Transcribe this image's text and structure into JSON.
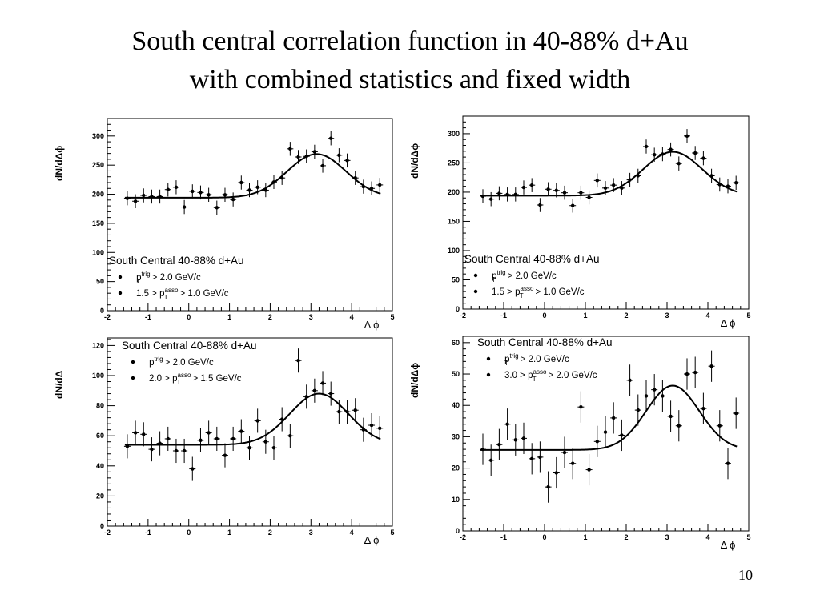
{
  "slide": {
    "title_line1": "South central correlation function in 40-88% d+Au",
    "title_line2": "with combined statistics and fixed width",
    "page_number": "10"
  },
  "chart_data": [
    {
      "type": "scatter",
      "title": "",
      "xlabel": "Δ ϕ",
      "ylabel": "dN/dΔϕ",
      "xlim": [
        -2,
        5
      ],
      "ylim": [
        0,
        330
      ],
      "xticks": [
        -2,
        -1,
        0,
        1,
        2,
        3,
        4,
        5
      ],
      "yticks": [
        0,
        50,
        100,
        150,
        200,
        250,
        300
      ],
      "legend": {
        "title": "South Central 40-88% d+Au",
        "entries": [
          {
            "pre": "p",
            "sup": "trig",
            "sub": "T",
            "post": " > 2.0 GeV/c"
          },
          {
            "pre": "1.5 > p",
            "sup": "asso",
            "sub": "T",
            "post": " > 1.0 GeV/c"
          }
        ]
      },
      "series": [
        {
          "type": "points",
          "x": [
            -1.51,
            -1.31,
            -1.11,
            -0.91,
            -0.71,
            -0.51,
            -0.31,
            -0.11,
            0.09,
            0.29,
            0.49,
            0.69,
            0.89,
            1.09,
            1.29,
            1.49,
            1.69,
            1.89,
            2.09,
            2.29,
            2.49,
            2.69,
            2.89,
            3.09,
            3.29,
            3.49,
            3.69,
            3.89,
            4.09,
            4.29,
            4.49,
            4.69
          ],
          "y": [
            193,
            188,
            198,
            196,
            196,
            208,
            212,
            178,
            205,
            203,
            199,
            177,
            199,
            191,
            220,
            207,
            212,
            207,
            221,
            228,
            278,
            264,
            265,
            273,
            249,
            296,
            267,
            258,
            228,
            213,
            210,
            216
          ],
          "yerr": [
            12,
            12,
            12,
            12,
            12,
            12,
            12,
            12,
            12,
            12,
            12,
            12,
            12,
            12,
            12,
            12,
            12,
            12,
            12,
            12,
            12,
            12,
            12,
            12,
            12,
            12,
            12,
            12,
            12,
            12,
            12,
            12
          ]
        },
        {
          "type": "fit",
          "function": "gaussian",
          "pedestal": 194,
          "amplitude": 75,
          "mean": 3.14,
          "sigma": 0.72
        }
      ]
    },
    {
      "type": "scatter",
      "title": "",
      "xlabel": "Δ ϕ",
      "ylabel": "dN/dΔϕ",
      "xlim": [
        -2,
        5
      ],
      "ylim": [
        0,
        330
      ],
      "xticks": [
        -2,
        -1,
        0,
        1,
        2,
        3,
        4,
        5
      ],
      "yticks": [
        0,
        50,
        100,
        150,
        200,
        250,
        300
      ],
      "legend": {
        "title": "South Central 40-88% d+Au",
        "entries": [
          {
            "pre": "p",
            "sup": "trig",
            "sub": "T",
            "post": " > 2.0 GeV/c"
          },
          {
            "pre": "1.5 > p",
            "sup": "asso",
            "sub": "T",
            "post": " > 1.0 GeV/c"
          }
        ]
      },
      "series": [
        {
          "type": "points",
          "x": [
            -1.51,
            -1.31,
            -1.11,
            -0.91,
            -0.71,
            -0.51,
            -0.31,
            -0.11,
            0.09,
            0.29,
            0.49,
            0.69,
            0.89,
            1.09,
            1.29,
            1.49,
            1.69,
            1.89,
            2.09,
            2.29,
            2.49,
            2.69,
            2.89,
            3.09,
            3.29,
            3.49,
            3.69,
            3.89,
            4.09,
            4.29,
            4.49,
            4.69
          ],
          "y": [
            193,
            188,
            198,
            196,
            196,
            208,
            212,
            178,
            205,
            203,
            199,
            177,
            199,
            191,
            220,
            207,
            212,
            207,
            221,
            228,
            278,
            264,
            265,
            273,
            249,
            296,
            267,
            258,
            228,
            213,
            210,
            216
          ],
          "yerr": [
            12,
            12,
            12,
            12,
            12,
            12,
            12,
            12,
            12,
            12,
            12,
            12,
            12,
            12,
            12,
            12,
            12,
            12,
            12,
            12,
            12,
            12,
            12,
            12,
            12,
            12,
            12,
            12,
            12,
            12,
            12,
            12
          ]
        },
        {
          "type": "fit",
          "function": "gaussian",
          "pedestal": 194,
          "amplitude": 75,
          "mean": 3.14,
          "sigma": 0.72
        }
      ]
    },
    {
      "type": "scatter",
      "title": "",
      "xlabel": "Δ ϕ",
      "ylabel": "dN/dΔ",
      "xlim": [
        -2,
        5
      ],
      "ylim": [
        0,
        125
      ],
      "xticks": [
        -2,
        -1,
        0,
        1,
        2,
        3,
        4,
        5
      ],
      "yticks": [
        0,
        20,
        40,
        60,
        80,
        100,
        120
      ],
      "legend": {
        "title": "South Central 40-88% d+Au",
        "entries": [
          {
            "pre": "p",
            "sup": "trig",
            "sub": "T",
            "post": " > 2.0 GeV/c"
          },
          {
            "pre": "2.0 > p",
            "sup": "asso",
            "sub": "T",
            "post": " > 1.5 GeV/c"
          }
        ]
      },
      "series": [
        {
          "type": "points",
          "x": [
            -1.51,
            -1.31,
            -1.11,
            -0.91,
            -0.71,
            -0.51,
            -0.31,
            -0.11,
            0.09,
            0.29,
            0.49,
            0.69,
            0.89,
            1.09,
            1.29,
            1.49,
            1.69,
            1.89,
            2.09,
            2.29,
            2.49,
            2.69,
            2.89,
            3.09,
            3.29,
            3.49,
            3.69,
            3.89,
            4.09,
            4.29,
            4.49,
            4.69
          ],
          "y": [
            53,
            62,
            61,
            51,
            55,
            58,
            50,
            50,
            38,
            57,
            62,
            58,
            47,
            58,
            63,
            52,
            70,
            56,
            52,
            71,
            60,
            110,
            86,
            90,
            95,
            88,
            76,
            76,
            77,
            64,
            67,
            65
          ],
          "yerr": [
            8,
            8,
            8,
            8,
            8,
            8,
            8,
            8,
            8,
            8,
            8,
            8,
            8,
            8,
            8,
            8,
            8,
            8,
            8,
            8,
            8,
            8,
            8,
            8,
            8,
            8,
            8,
            8,
            8,
            8,
            8,
            8
          ]
        },
        {
          "type": "fit",
          "function": "gaussian",
          "pedestal": 54,
          "amplitude": 34,
          "mean": 3.2,
          "sigma": 0.72
        }
      ]
    },
    {
      "type": "scatter",
      "title": "",
      "xlabel": "Δ ϕ",
      "ylabel": "dN/dΔϕ",
      "xlim": [
        -2,
        5
      ],
      "ylim": [
        0,
        62
      ],
      "xticks": [
        -2,
        -1,
        0,
        1,
        2,
        3,
        4,
        5
      ],
      "yticks": [
        0,
        10,
        20,
        30,
        40,
        50,
        60
      ],
      "legend": {
        "title": "South Central 40-88% d+Au",
        "entries": [
          {
            "pre": "p",
            "sup": "trig",
            "sub": "T",
            "post": " > 2.0 GeV/c"
          },
          {
            "pre": "3.0 > p",
            "sup": "asso",
            "sub": "T",
            "post": " > 2.0 GeV/c"
          }
        ]
      },
      "series": [
        {
          "type": "points",
          "x": [
            -1.51,
            -1.31,
            -1.11,
            -0.91,
            -0.71,
            -0.51,
            -0.31,
            -0.11,
            0.09,
            0.29,
            0.49,
            0.69,
            0.89,
            1.09,
            1.29,
            1.49,
            1.69,
            1.89,
            2.09,
            2.29,
            2.49,
            2.69,
            2.89,
            3.09,
            3.29,
            3.49,
            3.69,
            3.89,
            4.09,
            4.29,
            4.49,
            4.69
          ],
          "y": [
            26,
            22.5,
            27.5,
            34,
            29,
            29.5,
            23,
            23.5,
            14,
            18.5,
            25,
            21.5,
            39.5,
            19.5,
            28.5,
            31.5,
            36,
            30.5,
            48,
            38.5,
            43,
            45,
            43,
            36.5,
            33.5,
            50,
            50.5,
            39,
            52.5,
            33.5,
            21.5,
            37.5
          ],
          "yerr": [
            5,
            5,
            5,
            5,
            5,
            5,
            5,
            5,
            5,
            5,
            5,
            5,
            5,
            5,
            5,
            5,
            5,
            5,
            5,
            5,
            5,
            5,
            5,
            5,
            5,
            5,
            5,
            5,
            5,
            5,
            5,
            5
          ]
        },
        {
          "type": "fit",
          "function": "gaussian",
          "pedestal": 25.8,
          "amplitude": 20.5,
          "mean": 3.14,
          "sigma": 0.65
        }
      ]
    }
  ]
}
